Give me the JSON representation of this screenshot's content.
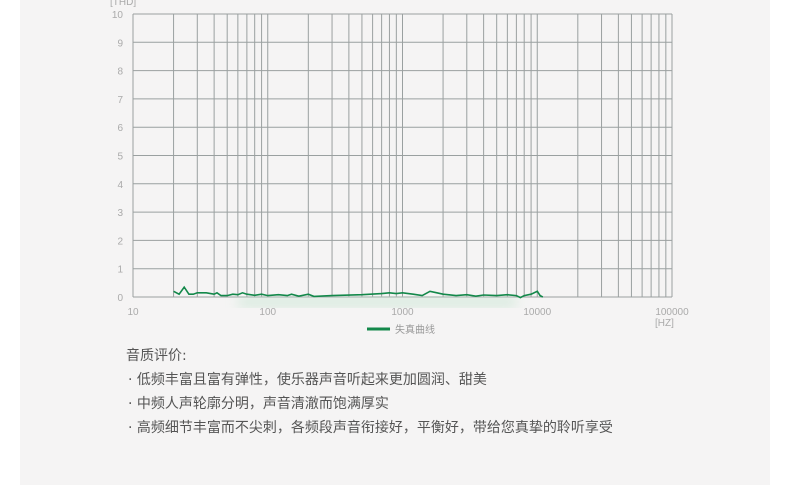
{
  "chart_data": {
    "type": "line",
    "xscale": "log",
    "xlim": [
      10,
      100000
    ],
    "ylim": [
      0,
      10
    ],
    "grid": true,
    "xlabel": "[HZ]",
    "ylabel": "[THD]",
    "xticks": [
      "10",
      "100",
      "1000",
      "10000",
      "100000"
    ],
    "yticks": [
      "0",
      "1",
      "2",
      "3",
      "4",
      "5",
      "6",
      "7",
      "8",
      "9",
      "10"
    ],
    "legend_position": "bottom",
    "series": [
      {
        "name": "失真曲线",
        "color": "#13884a",
        "x": [
          20,
          22,
          24,
          26,
          28,
          30,
          35,
          40,
          42,
          45,
          50,
          55,
          60,
          65,
          70,
          80,
          90,
          100,
          120,
          140,
          150,
          170,
          200,
          220,
          300,
          500,
          700,
          800,
          900,
          1000,
          1200,
          1400,
          1600,
          1800,
          2000,
          2500,
          3000,
          3500,
          4000,
          5000,
          6000,
          7000,
          7500,
          8000,
          9000,
          10000,
          10500,
          11000
        ],
        "y": [
          0.2,
          0.1,
          0.35,
          0.1,
          0.1,
          0.15,
          0.15,
          0.1,
          0.15,
          0.05,
          0.05,
          0.1,
          0.08,
          0.15,
          0.1,
          0.06,
          0.1,
          0.05,
          0.08,
          0.05,
          0.1,
          0.03,
          0.1,
          0.02,
          0.05,
          0.08,
          0.12,
          0.15,
          0.12,
          0.15,
          0.1,
          0.05,
          0.2,
          0.15,
          0.1,
          0.05,
          0.08,
          0.03,
          0.07,
          0.05,
          0.08,
          0.05,
          -0.02,
          0.05,
          0.1,
          0.2,
          0.05,
          0.0
        ]
      }
    ]
  },
  "description": {
    "title": "音质评价:",
    "items": [
      "· 低频丰富且富有弹性，使乐器声音听起来更加圆润、甜美",
      "· 中频人声轮廓分明，声音清澈而饱满厚实",
      "· 高频细节丰富而不尖刺，各频段声音衔接好，平衡好，带给您真挚的聆听享受"
    ]
  }
}
